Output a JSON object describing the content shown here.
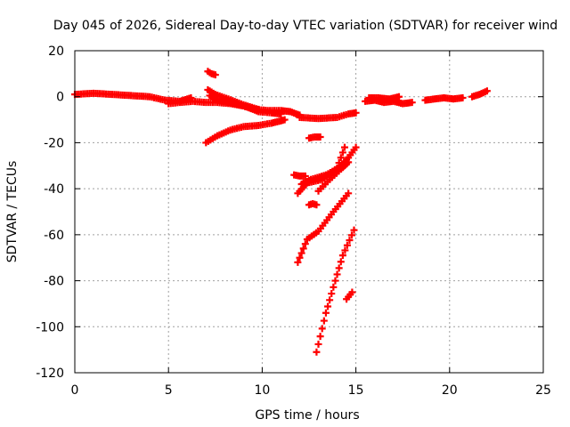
{
  "chart_data": {
    "type": "scatter",
    "title": "Day 045 of 2026, Sidereal Day-to-day VTEC variation (SDTVAR) for receiver wind",
    "xlabel": "GPS time / hours",
    "ylabel": "SDTVAR / TECUs",
    "xlim": [
      0,
      25
    ],
    "ylim": [
      -120,
      20
    ],
    "xticks": [
      0,
      5,
      10,
      15,
      20,
      25
    ],
    "yticks": [
      20,
      0,
      -20,
      -40,
      -60,
      -80,
      -100,
      -120
    ],
    "xtick_labels": [
      "0",
      "5",
      "10",
      "15",
      "20",
      "25"
    ],
    "ytick_labels": [
      "20",
      "0",
      "-20",
      "-40",
      "-60",
      "-80",
      "-100",
      "-120"
    ],
    "grid": true,
    "marker_color": "#ff0000",
    "grid_color": "#a0a0a0",
    "series": [
      {
        "x": [
          0.0,
          1.0,
          2.0,
          3.0,
          4.0,
          4.8,
          5.6,
          6.2
        ],
        "y": [
          1.0,
          1.5,
          1.0,
          0.5,
          0.0,
          -1.5,
          -2.0,
          -0.5
        ]
      },
      {
        "x": [
          5.0,
          5.6,
          6.3,
          7.0,
          7.6,
          8.3,
          9.0,
          9.6,
          10.3,
          11.0,
          11.5,
          12.0
        ],
        "y": [
          -3.0,
          -2.5,
          -2.0,
          -2.5,
          -2.5,
          -3.0,
          -4.0,
          -5.5,
          -6.0,
          -6.0,
          -6.5,
          -8.0
        ]
      },
      {
        "x": [
          7.1,
          7.5,
          8.2,
          9.0,
          9.8
        ],
        "y": [
          3.0,
          1.0,
          -1.0,
          -3.5,
          -5.5
        ]
      },
      {
        "x": [
          7.2,
          7.6,
          8.5,
          9.2,
          9.8,
          10.5,
          11.0
        ],
        "y": [
          0.5,
          -1.5,
          -3.0,
          -4.5,
          -6.5,
          -7.0,
          -7.5
        ]
      },
      {
        "x": [
          7.1,
          7.3,
          7.5
        ],
        "y": [
          11.0,
          10.0,
          9.5
        ]
      },
      {
        "x": [
          7.0,
          7.6,
          8.3,
          9.0,
          9.8,
          10.5,
          11.0,
          11.2
        ],
        "y": [
          -20.0,
          -17.0,
          -14.5,
          -13.0,
          -12.5,
          -11.5,
          -10.5,
          -10.0
        ]
      },
      {
        "x": [
          12.0,
          13.0,
          14.0,
          14.6,
          15.0
        ],
        "y": [
          -9.0,
          -9.5,
          -9.0,
          -7.5,
          -7.0
        ]
      },
      {
        "x": [
          12.5,
          12.8,
          13.1
        ],
        "y": [
          -18.0,
          -17.5,
          -17.5
        ]
      },
      {
        "x": [
          11.7,
          12.0,
          12.3
        ],
        "y": [
          -34.0,
          -34.5,
          -34.5
        ]
      },
      {
        "x": [
          12.1,
          12.6,
          13.4,
          14.1,
          14.6,
          15.0
        ],
        "y": [
          -38.0,
          -36.0,
          -34.0,
          -31.0,
          -26.5,
          -22.0
        ]
      },
      {
        "x": [
          11.9,
          12.4,
          13.2,
          14.0,
          14.4
        ],
        "y": [
          -42.0,
          -37.5,
          -36.0,
          -31.0,
          -22.0
        ]
      },
      {
        "x": [
          13.0,
          13.6,
          14.2,
          14.6
        ],
        "y": [
          -41.0,
          -36.0,
          -31.5,
          -28.5
        ]
      },
      {
        "x": [
          12.5,
          12.7,
          12.9
        ],
        "y": [
          -47.0,
          -46.5,
          -47.0
        ]
      },
      {
        "x": [
          11.9,
          12.4,
          13.0,
          13.8,
          14.6
        ],
        "y": [
          -72.0,
          -62.0,
          -58.5,
          -50.0,
          -42.0
        ]
      },
      {
        "x": [
          12.9,
          13.4,
          13.9,
          14.3,
          14.9
        ],
        "y": [
          -111.0,
          -94.0,
          -80.0,
          -69.0,
          -58.0
        ]
      },
      {
        "x": [
          14.5,
          14.8
        ],
        "y": [
          -88.0,
          -85.0
        ]
      },
      {
        "x": [
          15.5,
          16.0,
          16.5,
          17.0,
          17.5,
          18.0
        ],
        "y": [
          -2.0,
          -1.5,
          -2.5,
          -2.0,
          -3.0,
          -2.5
        ]
      },
      {
        "x": [
          15.7,
          16.2,
          16.8,
          17.3
        ],
        "y": [
          -0.5,
          -0.5,
          -1.0,
          0.0
        ]
      },
      {
        "x": [
          18.7,
          19.2,
          19.7,
          20.2,
          20.7
        ],
        "y": [
          -1.5,
          -1.0,
          -0.5,
          -1.0,
          -0.5
        ]
      },
      {
        "x": [
          21.2,
          21.6,
          22.0
        ],
        "y": [
          0.0,
          1.0,
          2.5
        ]
      }
    ]
  }
}
